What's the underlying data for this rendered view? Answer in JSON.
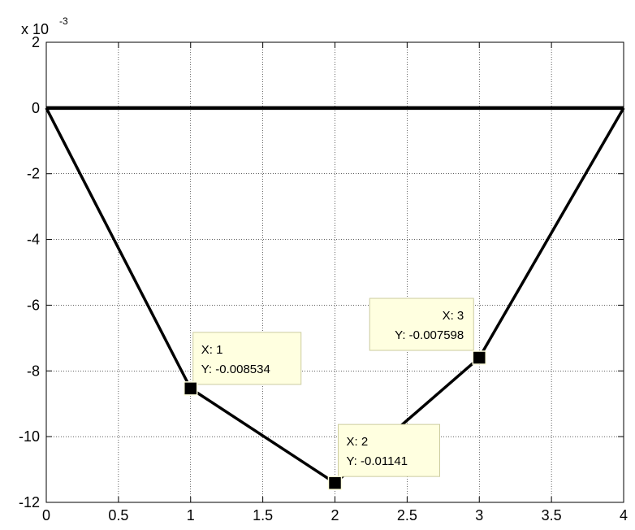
{
  "chart_data": {
    "type": "line",
    "title": "",
    "xlabel": "",
    "ylabel": "",
    "y_exponent_label": "x 10",
    "y_exponent_power": "-3",
    "xlim": [
      0,
      4
    ],
    "ylim": [
      -12,
      2
    ],
    "x_ticks": [
      0,
      0.5,
      1,
      1.5,
      2,
      2.5,
      3,
      3.5,
      4
    ],
    "x_tick_labels": [
      "0",
      "0.5",
      "1",
      "1.5",
      "2",
      "2.5",
      "3",
      "3.5",
      "4"
    ],
    "y_ticks": [
      2,
      0,
      -2,
      -4,
      -6,
      -8,
      -10,
      -12
    ],
    "y_tick_labels": [
      "2",
      "0",
      "-2",
      "-4",
      "-6",
      "-8",
      "-10",
      "-12"
    ],
    "grid": true,
    "legend": "none",
    "series": [
      {
        "x": [
          0,
          4
        ],
        "y": [
          0,
          0
        ],
        "color": "#000000"
      },
      {
        "x": [
          0,
          1,
          2,
          3,
          4
        ],
        "y": [
          0,
          -8.534,
          -11.41,
          -7.598,
          0
        ],
        "color": "#000000"
      }
    ],
    "datatips": [
      {
        "x": 1,
        "y": -8.534,
        "line1": "X: 1",
        "line2": "Y: -0.008534"
      },
      {
        "x": 2,
        "y": -11.41,
        "line1": "X: 2",
        "line2": "Y: -0.01141"
      },
      {
        "x": 3,
        "y": -7.598,
        "line1": "X: 3",
        "line2": "Y: -0.007598"
      }
    ],
    "datatip_bg": "#ffffe0",
    "datatip_border": "#cccca0"
  }
}
